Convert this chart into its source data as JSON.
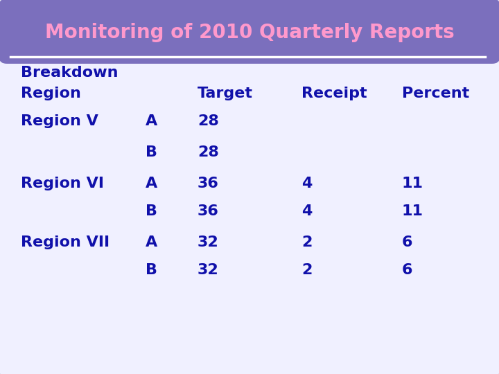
{
  "title": "Monitoring of 2010 Quarterly Reports",
  "title_color": "#FF99CC",
  "title_bg_color": "#7B6FBD",
  "title_fontsize": 20,
  "body_bg_color": "#F0F0FF",
  "outer_bg_color": "#FFFFFF",
  "border_color": "#7AA0A0",
  "text_color": "#1010AA",
  "rows": [
    {
      "region": "Region V",
      "sub": "A",
      "target": "28",
      "receipt": "",
      "percent": ""
    },
    {
      "region": "",
      "sub": "B",
      "target": "28",
      "receipt": "",
      "percent": ""
    },
    {
      "region": "Region VI",
      "sub": "A",
      "target": "36",
      "receipt": "4",
      "percent": "11"
    },
    {
      "region": "",
      "sub": "B",
      "target": "36",
      "receipt": "4",
      "percent": "11"
    },
    {
      "region": "Region VII",
      "sub": "A",
      "target": "32",
      "receipt": "2",
      "percent": "6"
    },
    {
      "region": "",
      "sub": "B",
      "target": "32",
      "receipt": "2",
      "percent": "6"
    }
  ]
}
